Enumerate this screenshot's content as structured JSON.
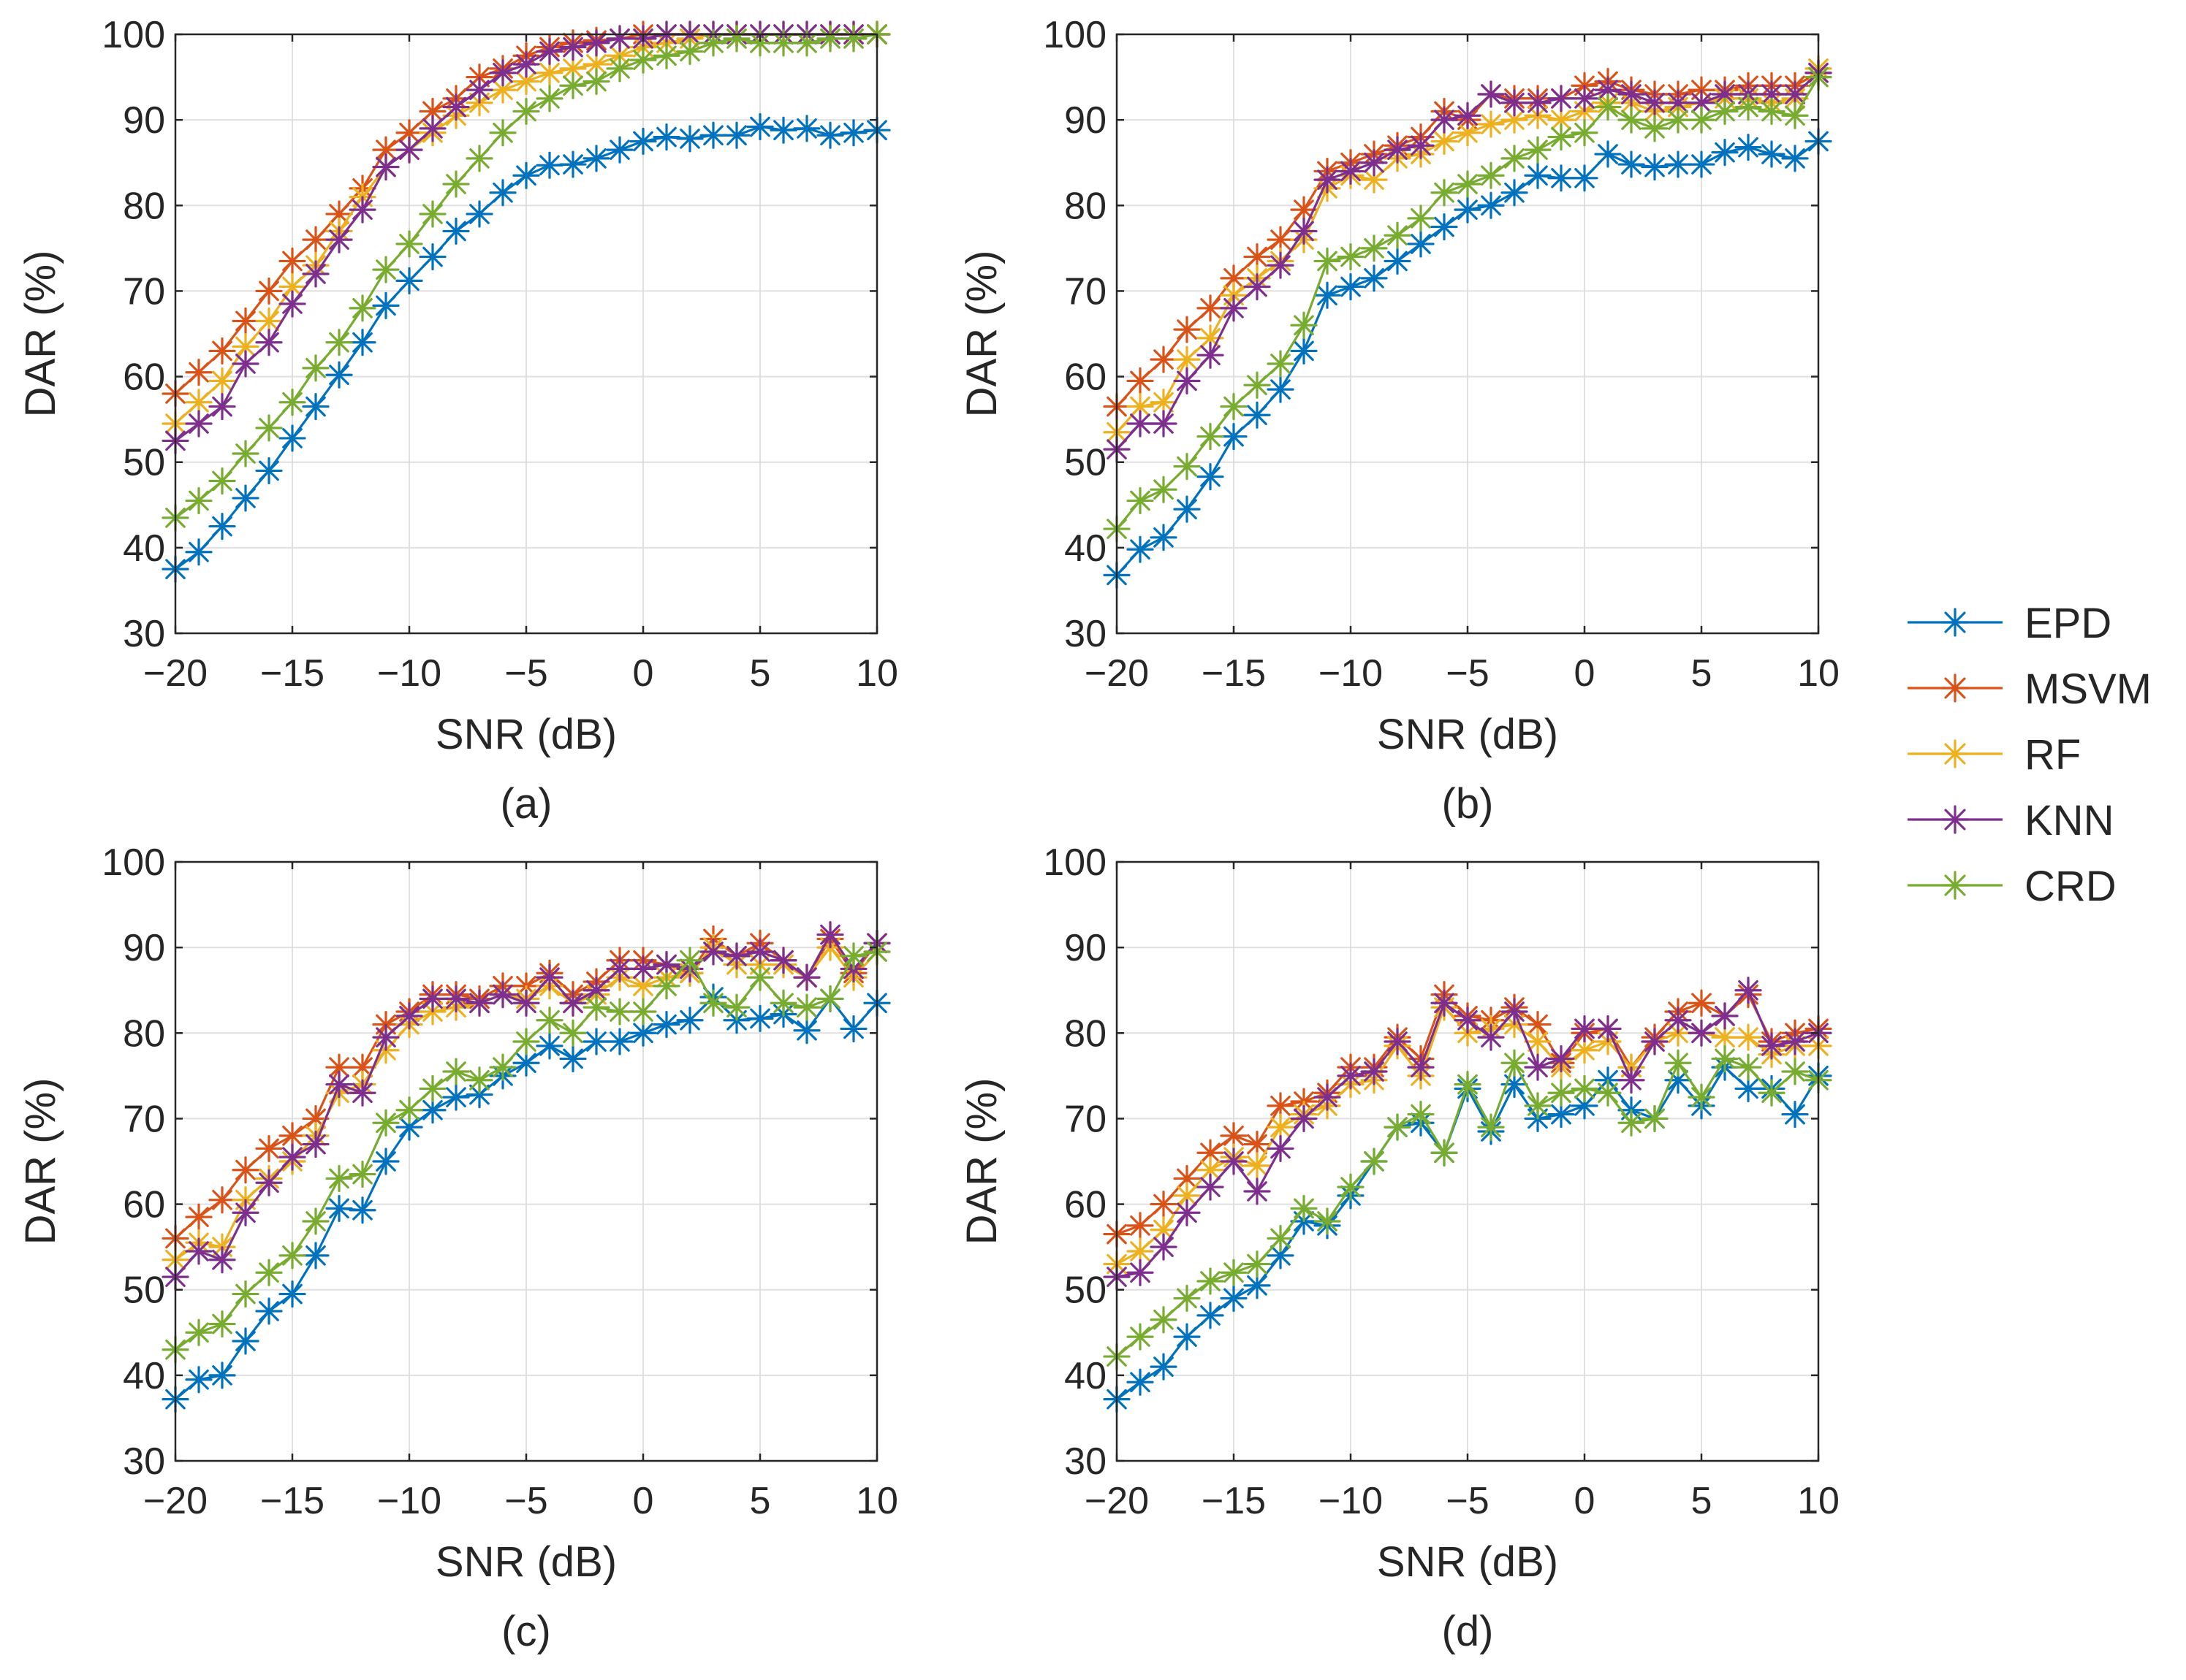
{
  "chart_data": [
    {
      "type": "line",
      "panel": "a",
      "caption": "(a)",
      "xlabel": "SNR (dB)",
      "ylabel": "DAR (%)",
      "xlim": [
        -20,
        10
      ],
      "ylim": [
        30,
        100
      ],
      "xticks": [
        -20,
        -15,
        -10,
        -5,
        0,
        5,
        10
      ],
      "yticks": [
        30,
        40,
        50,
        60,
        70,
        80,
        90,
        100
      ],
      "grid": true,
      "x": [
        -20,
        -19,
        -18,
        -17,
        -16,
        -15,
        -14,
        -13,
        -12,
        -11,
        -10,
        -9,
        -8,
        -7,
        -6,
        -5,
        -4,
        -3,
        -2,
        -1,
        0,
        1,
        2,
        3,
        4,
        5,
        6,
        7,
        8,
        9,
        10
      ],
      "series": [
        {
          "name": "EPD",
          "values": [
            37.5,
            39.5,
            42.5,
            45.8,
            49,
            52.8,
            56.5,
            60.2,
            64,
            68.3,
            71.2,
            74,
            77,
            79,
            81.5,
            83.5,
            84.7,
            84.8,
            85.5,
            86.5,
            87.5,
            88,
            87.8,
            88.2,
            88.2,
            89.2,
            88.8,
            89,
            88.2,
            88.5,
            88.8
          ]
        },
        {
          "name": "MSVM",
          "values": [
            58,
            60.5,
            63,
            66.5,
            70,
            73.5,
            76,
            79,
            82,
            86.5,
            88.5,
            91,
            92.5,
            95,
            96,
            97.5,
            98.5,
            99,
            99.3,
            99.5,
            100,
            100,
            100,
            100,
            100,
            100,
            100,
            100,
            100,
            100,
            100
          ]
        },
        {
          "name": "RF",
          "values": [
            54.5,
            57,
            59.5,
            63.5,
            66.5,
            70.5,
            73,
            77,
            81,
            84.5,
            86.5,
            88.5,
            90.5,
            92,
            93.5,
            94.5,
            95.5,
            96,
            96.5,
            97.5,
            98.5,
            99,
            99.5,
            100,
            100,
            100,
            100,
            100,
            100,
            100,
            100
          ]
        },
        {
          "name": "KNN",
          "values": [
            52.5,
            54.5,
            56.5,
            61.5,
            64,
            68.5,
            72,
            76,
            79.5,
            84.5,
            86.5,
            89,
            91.5,
            93.5,
            95.5,
            96.5,
            98,
            98.5,
            99,
            99.5,
            99.5,
            100,
            100,
            100,
            100,
            100,
            100,
            100,
            100,
            100,
            100
          ]
        },
        {
          "name": "CRD",
          "values": [
            43.5,
            45.5,
            47.8,
            51,
            54,
            57,
            61,
            64,
            68,
            72.5,
            75.5,
            79,
            82.5,
            85.5,
            88.5,
            91,
            92.5,
            94,
            94.5,
            96,
            97,
            97.5,
            98,
            99,
            99.5,
            99,
            99,
            99,
            99.5,
            99.5,
            100
          ]
        }
      ]
    },
    {
      "type": "line",
      "panel": "b",
      "caption": "(b)",
      "xlabel": "SNR (dB)",
      "ylabel": "DAR (%)",
      "xlim": [
        -20,
        10
      ],
      "ylim": [
        30,
        100
      ],
      "xticks": [
        -20,
        -15,
        -10,
        -5,
        0,
        5,
        10
      ],
      "yticks": [
        30,
        40,
        50,
        60,
        70,
        80,
        90,
        100
      ],
      "grid": true,
      "x": [
        -20,
        -19,
        -18,
        -17,
        -16,
        -15,
        -14,
        -13,
        -12,
        -11,
        -10,
        -9,
        -8,
        -7,
        -6,
        -5,
        -4,
        -3,
        -2,
        -1,
        0,
        1,
        2,
        3,
        4,
        5,
        6,
        7,
        8,
        9,
        10
      ],
      "series": [
        {
          "name": "EPD",
          "values": [
            36.8,
            39.8,
            41.2,
            44.5,
            48.3,
            53,
            55.5,
            58.5,
            63,
            69.5,
            70.5,
            71.5,
            73.5,
            75.5,
            77.5,
            79.5,
            80,
            81.5,
            83.5,
            83.2,
            83.2,
            86,
            84.8,
            84.5,
            84.8,
            84.8,
            86.2,
            86.8,
            86,
            85.5,
            87.5
          ]
        },
        {
          "name": "MSVM",
          "values": [
            56.5,
            59.5,
            62,
            65.5,
            68,
            71.5,
            74,
            76,
            79.5,
            84,
            85,
            86,
            87,
            88,
            91,
            90,
            93,
            92.5,
            92.5,
            92.5,
            94,
            94.5,
            93.5,
            93,
            93,
            93.5,
            93.5,
            94,
            94,
            94,
            95.5
          ]
        },
        {
          "name": "RF",
          "values": [
            53.5,
            56.5,
            57,
            62,
            64.5,
            69.5,
            71.5,
            73.5,
            76,
            82,
            83.5,
            83,
            85.5,
            86,
            87.5,
            88.5,
            89.5,
            90,
            90.5,
            90,
            91,
            92,
            92,
            91,
            91.5,
            92,
            92.5,
            92.5,
            92,
            92.5,
            96
          ]
        },
        {
          "name": "KNN",
          "values": [
            51.5,
            54.5,
            54.5,
            59.5,
            62.5,
            68,
            70.5,
            73,
            77,
            83,
            84,
            85,
            86.5,
            87,
            90,
            90.5,
            93,
            92,
            92,
            92.5,
            92.5,
            93.5,
            93,
            92,
            92,
            92,
            93,
            93,
            93,
            93,
            95.5
          ]
        },
        {
          "name": "CRD",
          "values": [
            42.2,
            45.5,
            46.8,
            49.5,
            53,
            56.5,
            59,
            61.5,
            66,
            73.5,
            74,
            75,
            76.5,
            78.5,
            81.5,
            82.5,
            83.5,
            85.5,
            86.5,
            88,
            88.5,
            91.5,
            90,
            89,
            90,
            90,
            91,
            91.5,
            91,
            90.5,
            95
          ]
        }
      ]
    },
    {
      "type": "line",
      "panel": "c",
      "caption": "(c)",
      "xlabel": "SNR (dB)",
      "ylabel": "DAR (%)",
      "xlim": [
        -20,
        10
      ],
      "ylim": [
        30,
        100
      ],
      "xticks": [
        -20,
        -15,
        -10,
        -5,
        0,
        5,
        10
      ],
      "yticks": [
        30,
        40,
        50,
        60,
        70,
        80,
        90,
        100
      ],
      "grid": true,
      "x": [
        -20,
        -19,
        -18,
        -17,
        -16,
        -15,
        -14,
        -13,
        -12,
        -11,
        -10,
        -9,
        -8,
        -7,
        -6,
        -5,
        -4,
        -3,
        -2,
        -1,
        0,
        1,
        2,
        3,
        4,
        5,
        6,
        7,
        8,
        9,
        10
      ],
      "series": [
        {
          "name": "EPD",
          "values": [
            37.2,
            39.5,
            40,
            44,
            47.5,
            49.5,
            54,
            59.5,
            59.3,
            65,
            69,
            71,
            72.5,
            72.8,
            75,
            76.5,
            78.5,
            77,
            79,
            79,
            80,
            81,
            81.5,
            84.2,
            81.5,
            81.7,
            82.2,
            80.3,
            84,
            80.5,
            83.5
          ]
        },
        {
          "name": "MSVM",
          "values": [
            56,
            58.5,
            60.5,
            64,
            66.5,
            68,
            70,
            76,
            76,
            81,
            82.5,
            84.5,
            84.5,
            84,
            85.5,
            85.5,
            87,
            84.5,
            86,
            88.5,
            88.5,
            88,
            87,
            91,
            89,
            90.5,
            88.5,
            86.5,
            91,
            87,
            90.5
          ]
        },
        {
          "name": "RF",
          "values": [
            53.5,
            55.5,
            55,
            60.5,
            63,
            65,
            68,
            73,
            74,
            78,
            81,
            82.5,
            83,
            83.5,
            84.5,
            84,
            85.5,
            83.5,
            84.5,
            86.5,
            85.5,
            86.5,
            87,
            90,
            88,
            88,
            88,
            86.5,
            90,
            86.5,
            89.5
          ]
        },
        {
          "name": "KNN",
          "values": [
            51.5,
            54.5,
            53.5,
            59,
            62.5,
            65.5,
            67,
            74,
            73,
            79.5,
            82,
            84,
            84,
            83.5,
            84.5,
            83.5,
            86.5,
            83.5,
            85,
            87.5,
            87.5,
            88,
            87.5,
            89.5,
            89,
            89.5,
            88.5,
            86.5,
            91.5,
            87.5,
            90.5
          ]
        },
        {
          "name": "CRD",
          "values": [
            43,
            45,
            46,
            49.5,
            52,
            54,
            58,
            63,
            63.5,
            69.5,
            71,
            73.5,
            75.5,
            74.5,
            76,
            79,
            81.5,
            80,
            83,
            82.5,
            82.5,
            85.5,
            88.5,
            83.5,
            83,
            86.5,
            83.5,
            83,
            84,
            89,
            89.5
          ]
        }
      ]
    },
    {
      "type": "line",
      "panel": "d",
      "caption": "(d)",
      "xlabel": "SNR (dB)",
      "ylabel": "DAR (%)",
      "xlim": [
        -20,
        10
      ],
      "ylim": [
        30,
        100
      ],
      "xticks": [
        -20,
        -15,
        -10,
        -5,
        0,
        5,
        10
      ],
      "yticks": [
        30,
        40,
        50,
        60,
        70,
        80,
        90,
        100
      ],
      "grid": true,
      "x": [
        -20,
        -19,
        -18,
        -17,
        -16,
        -15,
        -14,
        -13,
        -12,
        -11,
        -10,
        -9,
        -8,
        -7,
        -6,
        -5,
        -4,
        -3,
        -2,
        -1,
        0,
        1,
        2,
        3,
        4,
        5,
        6,
        7,
        8,
        9,
        10
      ],
      "series": [
        {
          "name": "EPD",
          "values": [
            37.2,
            39.2,
            41,
            44.5,
            47,
            49,
            50.5,
            54,
            58,
            57.5,
            61,
            65,
            69,
            69.5,
            66,
            73.5,
            68.5,
            74,
            70,
            70.5,
            71.5,
            74.5,
            71,
            70,
            74.5,
            71.5,
            76,
            73.5,
            73.5,
            70.5,
            75
          ]
        },
        {
          "name": "MSVM",
          "values": [
            56.5,
            57.5,
            60,
            63,
            66,
            68,
            67,
            71.5,
            72,
            73,
            76,
            76,
            79.5,
            77,
            84.5,
            82,
            81.5,
            83,
            81,
            76.5,
            80,
            80.5,
            76,
            79.5,
            82.5,
            83.5,
            82,
            84.5,
            79,
            80,
            80.5
          ]
        },
        {
          "name": "RF",
          "values": [
            53,
            54.5,
            57,
            61,
            64,
            65.5,
            64.5,
            69,
            70.5,
            71.5,
            74,
            74.5,
            78.5,
            75,
            83,
            80,
            80.5,
            81,
            79,
            76,
            78,
            79,
            76,
            79,
            80,
            80,
            79.5,
            79.5,
            77.5,
            78.5,
            78.5
          ]
        },
        {
          "name": "KNN",
          "values": [
            51.5,
            52,
            55,
            59,
            62,
            65,
            61.5,
            66.5,
            70,
            72.5,
            75,
            75.5,
            79,
            76,
            83.5,
            81.5,
            79.5,
            82.5,
            76,
            77,
            80.5,
            80.5,
            74.5,
            79,
            81.5,
            80,
            82,
            85,
            78.5,
            79,
            80
          ]
        },
        {
          "name": "CRD",
          "values": [
            42.2,
            44.5,
            46.5,
            49,
            51,
            52,
            53,
            56,
            59.5,
            58,
            62,
            65,
            69,
            70.5,
            66,
            74,
            69,
            76.5,
            71.5,
            73,
            73.5,
            73,
            69.5,
            70,
            76.5,
            72.5,
            77,
            76,
            73,
            75.5,
            74.5
          ]
        }
      ]
    }
  ],
  "legend": {
    "placement": "right-middle",
    "entries": [
      {
        "name": "EPD",
        "color": "#0072BD"
      },
      {
        "name": "MSVM",
        "color": "#D95319"
      },
      {
        "name": "RF",
        "color": "#EDB120"
      },
      {
        "name": "KNN",
        "color": "#7E2F8E"
      },
      {
        "name": "CRD",
        "color": "#77AC30"
      }
    ]
  },
  "colors": {
    "EPD": "#0072BD",
    "MSVM": "#D95319",
    "RF": "#EDB120",
    "KNN": "#7E2F8E",
    "CRD": "#77AC30",
    "axis": "#262626",
    "grid": "#DFDFDF"
  }
}
